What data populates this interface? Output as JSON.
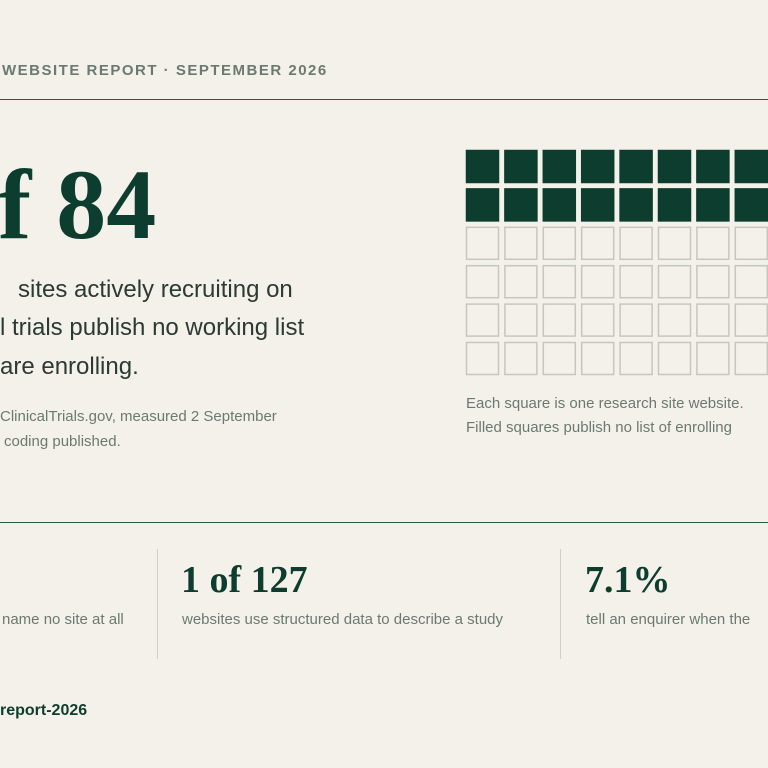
{
  "header": {
    "title": "WEBSITE REPORT  ·  SEPTEMBER 2026"
  },
  "headline": {
    "figure": "f 84",
    "lines": [
      "sites actively recruiting on",
      "l trials publish no working list",
      "are enrolling."
    ]
  },
  "source": {
    "lines": [
      "ClinicalTrials.gov, measured 2 September",
      "coding published."
    ]
  },
  "waffle": {
    "caption": [
      "Each square is one research site website.",
      "Filled squares publish no list of enrolling"
    ]
  },
  "stats": [
    {
      "description": "name no site at all"
    },
    {
      "figure": "1 of 127",
      "description": "websites use structured data to describe a study"
    },
    {
      "figure": "7.1%",
      "description": "tell an enquirer when the"
    }
  ],
  "footer": {
    "link": "report-2026"
  }
}
